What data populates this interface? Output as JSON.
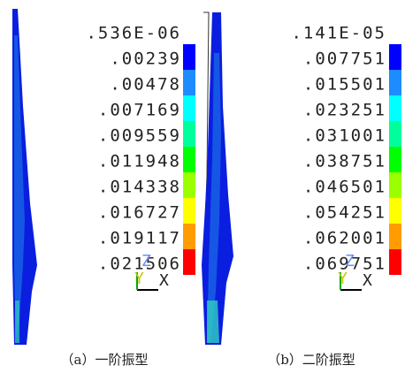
{
  "legend_colors": [
    "#0000ff",
    "#1c8cff",
    "#00ffff",
    "#00ff9c",
    "#00ff00",
    "#9cff00",
    "#ffff00",
    "#ff9c00",
    "#ff0000"
  ],
  "panels": [
    {
      "labels": [
        ".536E-06",
        ".00239",
        ".00478",
        ".007169",
        ".009559",
        ".011948",
        ".014338",
        ".016727",
        ".019117",
        ".021506"
      ],
      "triad": {
        "z": "Z",
        "y": "Y",
        "x": "X"
      },
      "caption": "（a）一阶振型"
    },
    {
      "labels": [
        ".141E-05",
        ".007751",
        ".015501",
        ".023251",
        ".031001",
        ".038751",
        ".046501",
        ".054251",
        ".062001",
        ".069751"
      ],
      "triad": {
        "z": "Z",
        "y": "Y",
        "x": "X"
      },
      "caption": "（b）二阶振型"
    }
  ]
}
